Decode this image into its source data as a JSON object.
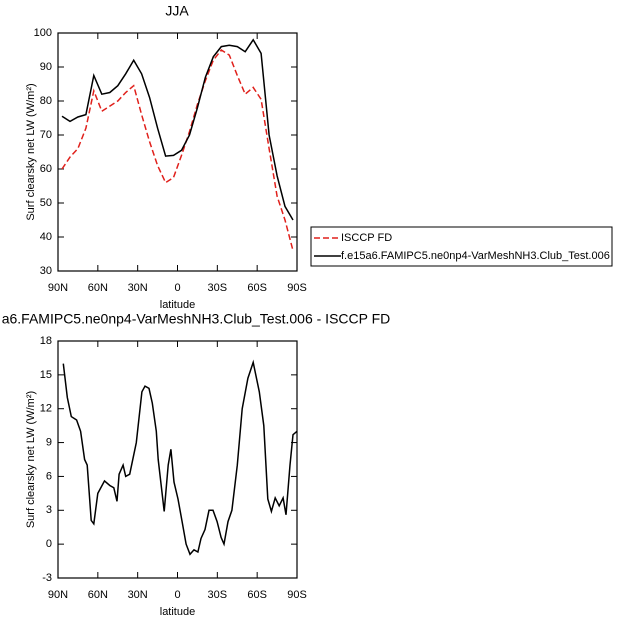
{
  "chart_data": [
    {
      "type": "line",
      "title": "JJA",
      "x_label": "latitude",
      "y_label": "Surf clearsky net LW (W/m²)",
      "x": [
        87,
        81,
        75,
        69,
        63,
        57,
        51,
        45,
        39,
        33,
        27,
        21,
        15,
        9,
        3,
        -3,
        -9,
        -15,
        -21,
        -27,
        -33,
        -39,
        -45,
        -51,
        -57,
        -63,
        -69,
        -75,
        -81,
        -87
      ],
      "series": [
        {
          "name": "ISCCP FD",
          "color": "#e0201b",
          "dash": true,
          "values": [
            60,
            63.5,
            66,
            72,
            83,
            77,
            78.5,
            80,
            82.5,
            84.5,
            76,
            68,
            61,
            56,
            57.5,
            64,
            71,
            79,
            86,
            92,
            95,
            93.5,
            87.5,
            82,
            84,
            80.5,
            66,
            52,
            45,
            36
          ]
        },
        {
          "name": "f.e15a6.FAMIPC5.ne0np4-VarMeshNH3.Club_Test.006",
          "color": "#000000",
          "dash": false,
          "values": [
            75.5,
            74,
            75.3,
            76,
            87.5,
            82,
            82.5,
            84.5,
            88,
            92,
            88,
            81,
            72,
            63.8,
            64,
            65.5,
            70,
            78,
            87,
            93,
            96,
            96.4,
            96,
            94.5,
            98,
            94,
            70,
            58,
            49,
            45
          ]
        }
      ],
      "xlim": [
        90,
        -90
      ],
      "xticks": [
        {
          "value": 90,
          "label": "90N"
        },
        {
          "value": 60,
          "label": "60N"
        },
        {
          "value": 30,
          "label": "30N"
        },
        0,
        {
          "value": -30,
          "label": "30S"
        },
        {
          "value": -60,
          "label": "60S"
        },
        {
          "value": -90,
          "label": "90S"
        }
      ],
      "ylim": [
        30,
        100
      ],
      "yticks": [
        30,
        40,
        50,
        60,
        70,
        80,
        90,
        100
      ],
      "legend": "right"
    },
    {
      "type": "line",
      "title": "a6.FAMIPC5.ne0np4-VarMeshNH3.Club_Test.006 - ISCCP FD",
      "x_label": "latitude",
      "y_label": "Surf clearsky net LW (W/m²)",
      "x": [
        86,
        83,
        80,
        76,
        73,
        70,
        68,
        65,
        63,
        60,
        55,
        51,
        48,
        45.6,
        44,
        41,
        39,
        36,
        31,
        26.8,
        24.5,
        21.5,
        19,
        16,
        14.5,
        10,
        7,
        5,
        2.6,
        -0.4,
        -3.5,
        -6.5,
        -9.4,
        -12.4,
        -15.4,
        -17.7,
        -20.7,
        -23.7,
        -26.7,
        -29.8,
        -32.8,
        -35,
        -38,
        -41,
        -45,
        -48.7,
        -53,
        -57,
        -61.6,
        -65,
        -68,
        -70.7,
        -73.6,
        -76.6,
        -79.5,
        -81.7,
        -84.7,
        -87,
        -90
      ],
      "series": [
        {
          "name": null,
          "color": "#000000",
          "dash": false,
          "values": [
            16,
            13,
            11.3,
            11,
            10,
            7.5,
            7,
            2.1,
            1.8,
            4.5,
            5.6,
            5.2,
            5,
            3.8,
            6.2,
            7,
            6,
            6.2,
            9,
            13.5,
            14,
            13.8,
            12.5,
            10,
            7.5,
            2.9,
            7,
            8.4,
            5.5,
            4,
            2,
            0,
            -0.9,
            -0.5,
            -0.7,
            0.5,
            1.3,
            3,
            3,
            2,
            0.6,
            0,
            2,
            3,
            7,
            12,
            14.7,
            16.1,
            13.5,
            10.5,
            4,
            2.9,
            4.1,
            3.4,
            4.1,
            2.6,
            7,
            9.7,
            10
          ]
        }
      ],
      "xlim": [
        90,
        -90
      ],
      "xticks": [
        {
          "value": 90,
          "label": "90N"
        },
        {
          "value": 60,
          "label": "60N"
        },
        {
          "value": 30,
          "label": "30N"
        },
        0,
        {
          "value": -30,
          "label": "30S"
        },
        {
          "value": -60,
          "label": "60S"
        },
        {
          "value": -90,
          "label": "90S"
        }
      ],
      "ylim": [
        -3,
        18
      ],
      "yticks": [
        -3,
        0,
        3,
        6,
        9,
        12,
        15,
        18
      ],
      "legend": null
    }
  ]
}
